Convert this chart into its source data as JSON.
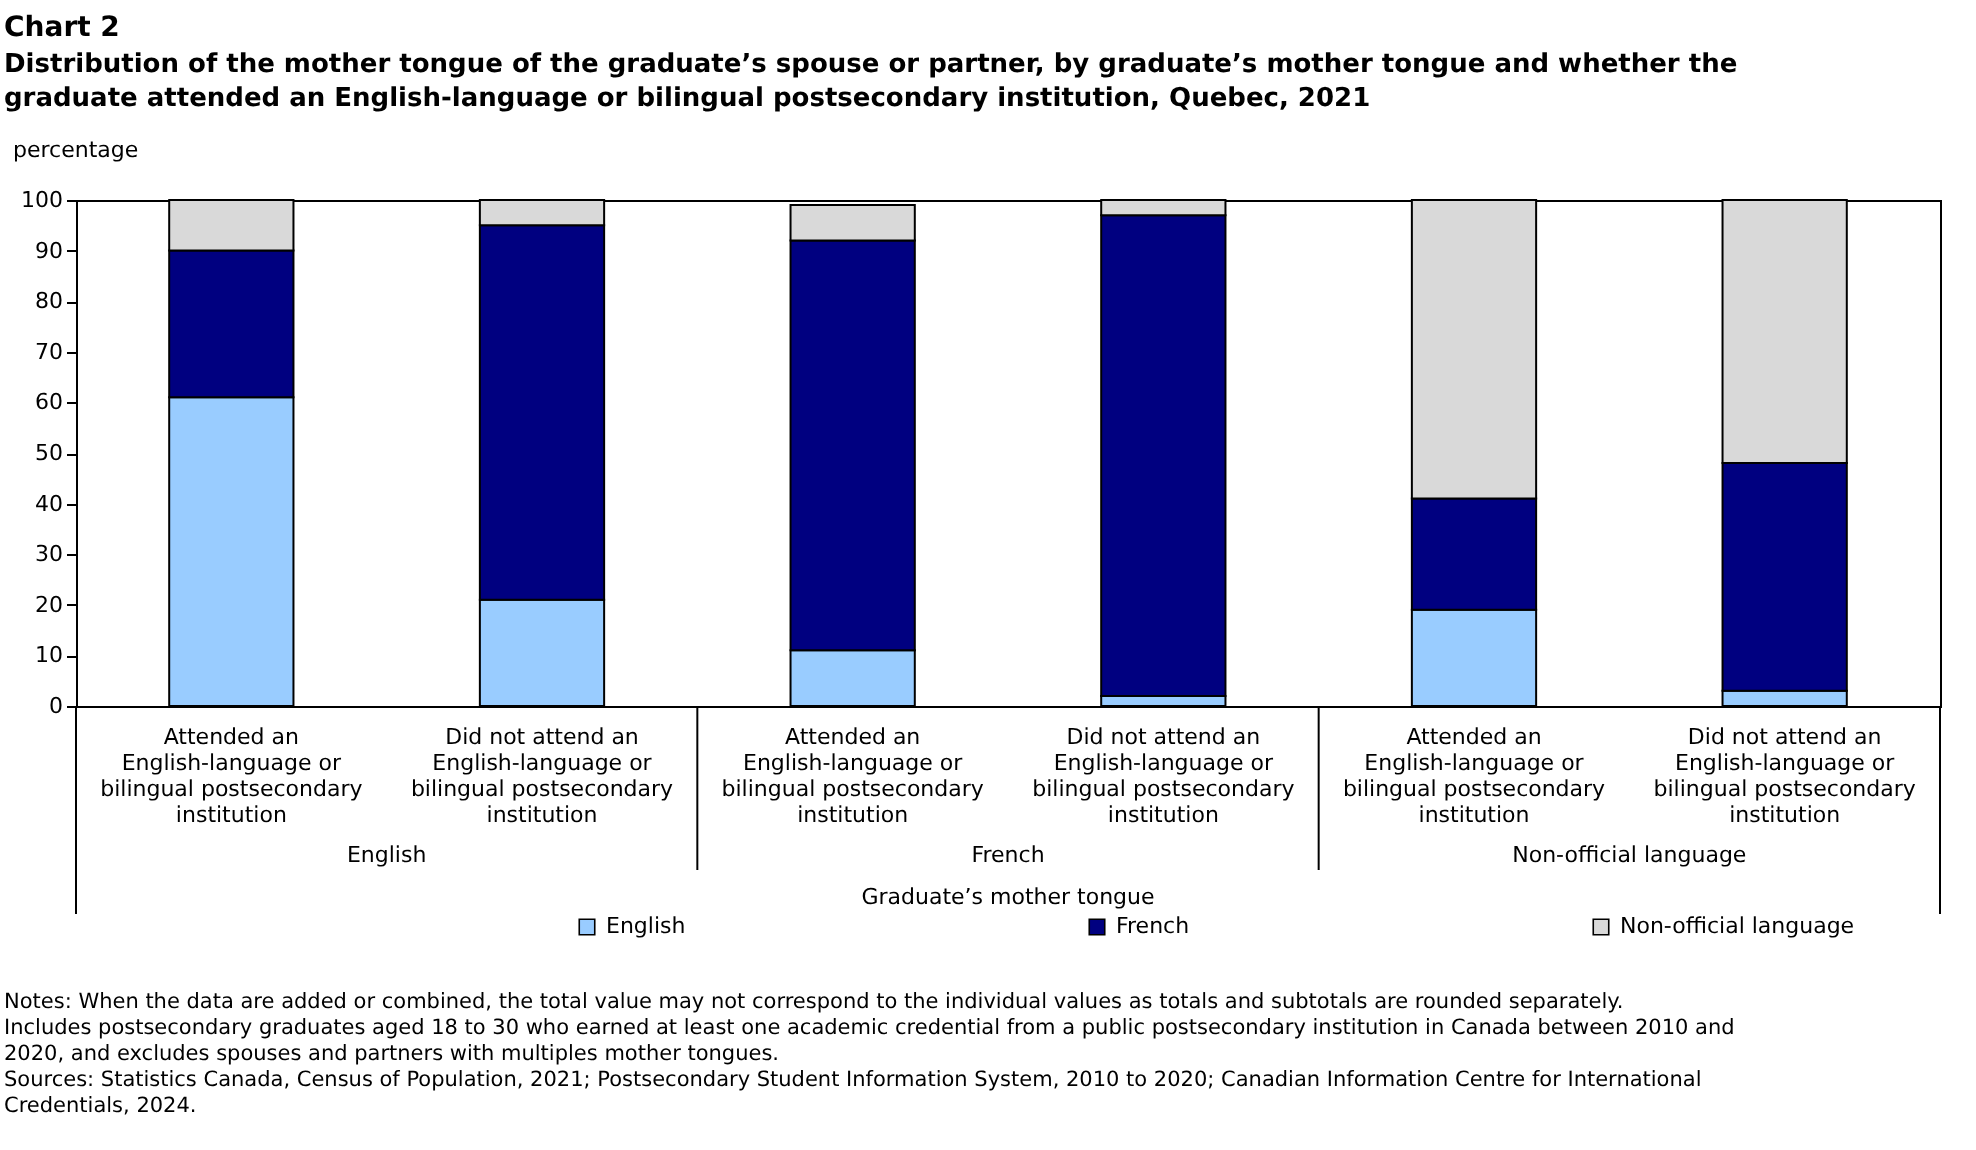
{
  "chart_data": {
    "type": "bar",
    "stacked": true,
    "title": "Chart 2",
    "subtitle": "Distribution  of the mother tongue of the graduate’s spouse or partner, by graduate’s mother tongue and whether the graduate attended an English-language  or bilingual  postsecondary institution,  Quebec, 2021",
    "ylabel": "percentage",
    "xlabel": "Graduate’s mother tongue",
    "categories": [
      "Attended an English-language or bilingual postsecondary institution",
      "Did not attend an English-language or bilingual postsecondary institution",
      "Attended an English-language or bilingual postsecondary institution",
      "Did not attend an English-language or bilingual postsecondary institution",
      "Attended an English-language or bilingual postsecondary institution",
      "Did not attend an English-language or bilingual postsecondary institution"
    ],
    "series": [
      {
        "name": "English",
        "color": "#99ccff",
        "values": [
          61,
          21,
          11,
          2,
          19,
          3
        ]
      },
      {
        "name": "French",
        "color": "#000080",
        "values": [
          29,
          74,
          81,
          95,
          22,
          45
        ]
      },
      {
        "name": "Non-official language",
        "color": "#d9d9d9",
        "values": [
          10,
          5,
          7,
          3,
          59,
          52
        ]
      }
    ],
    "ylim": [
      0,
      100
    ],
    "yticks": [
      0,
      10,
      20,
      30,
      40,
      50,
      60,
      70,
      80,
      90,
      100
    ],
    "grid": false,
    "legend": "bottom",
    "annotations": [
      "English",
      "French",
      "Non-official language",
      "Notes: When the data are added or combined, the total value may not correspond to the individual values as totals and subtotals are rounded separately.",
      "Includes postsecondary graduates aged 18 to 30 who earned at least one academic credential from a public postsecondary institution in Canada between 2010 and 2020, and excludes spouses and partners with multiples mother tongues.",
      "Sources: Statistics Canada, Census of Population, 2021; Postsecondary Student Information System, 2010 to 2020; Canadian Information Centre for International Credentials, 2024."
    ]
  }
}
